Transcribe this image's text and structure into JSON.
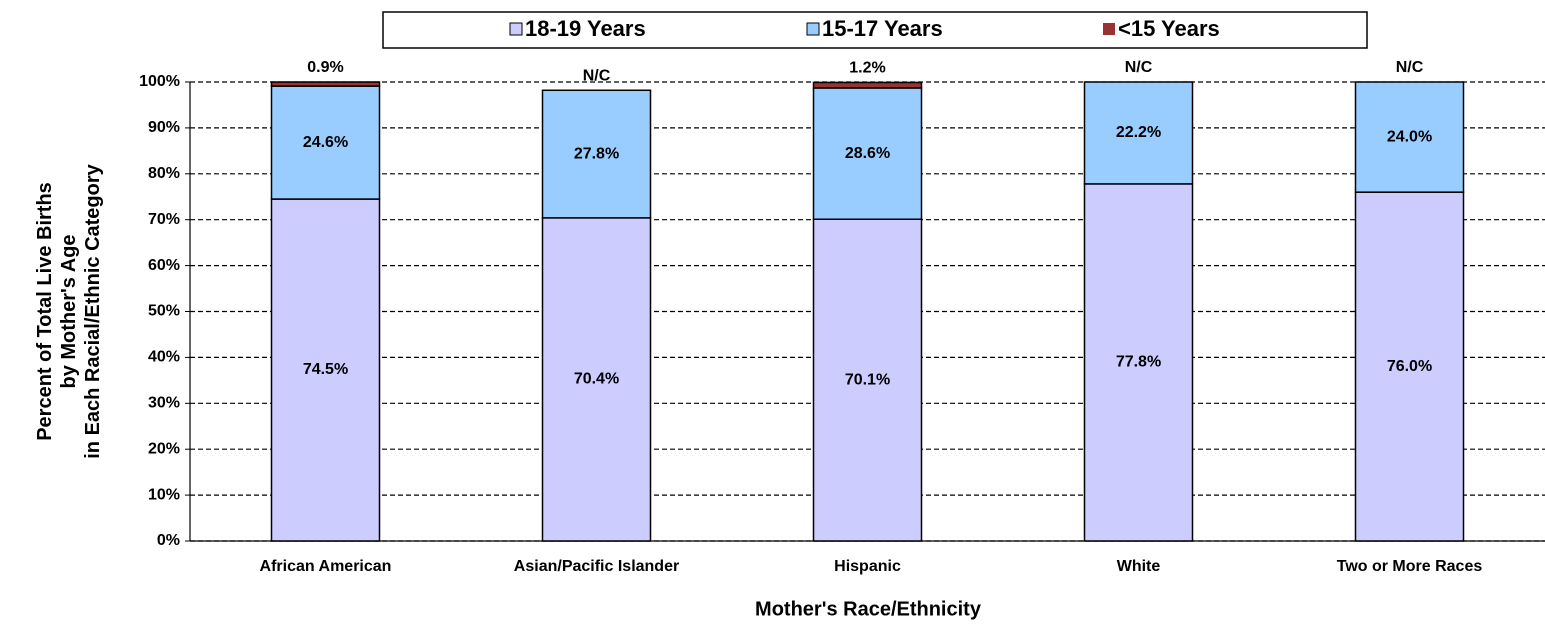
{
  "chart_data": {
    "type": "stacked_bar",
    "categories": [
      "African American",
      "Asian/Pacific Islander",
      "Hispanic",
      "White",
      "Two or More Races"
    ],
    "series": [
      {
        "name": "18-19 Years",
        "color": "#ccccff",
        "values": [
          74.5,
          70.4,
          70.1,
          77.8,
          76.0
        ],
        "value_labels": [
          "74.5%",
          "70.4%",
          "70.1%",
          "77.8%",
          "76.0%"
        ]
      },
      {
        "name": "15-17 Years",
        "color": "#99ccff",
        "values": [
          24.6,
          27.8,
          28.6,
          22.2,
          24.0
        ],
        "value_labels": [
          "24.6%",
          "27.8%",
          "28.6%",
          "22.2%",
          "24.0%"
        ]
      },
      {
        "name": "<15 Years",
        "color": "#993333",
        "values": [
          0.9,
          null,
          1.2,
          null,
          null
        ],
        "value_labels": [
          "0.9%",
          "N/C",
          "1.2%",
          "N/C",
          "N/C"
        ]
      }
    ],
    "ylim": [
      0,
      100
    ],
    "yticks": [
      {
        "value": 0,
        "label": "0%"
      },
      {
        "value": 10,
        "label": "10%"
      },
      {
        "value": 20,
        "label": "20%"
      },
      {
        "value": 30,
        "label": "30%"
      },
      {
        "value": 40,
        "label": "40%"
      },
      {
        "value": 50,
        "label": "50%"
      },
      {
        "value": 60,
        "label": "60%"
      },
      {
        "value": 70,
        "label": "70%"
      },
      {
        "value": 80,
        "label": "80%"
      },
      {
        "value": 90,
        "label": "90%"
      },
      {
        "value": 100,
        "label": "100%"
      }
    ],
    "y_label": [
      "Percent of Total Live Births",
      "by Mother's Age",
      "in Each Racial/Ethnic Category"
    ],
    "x_label": "Mother's Race/Ethnicity",
    "grid": true,
    "legend": "top"
  }
}
